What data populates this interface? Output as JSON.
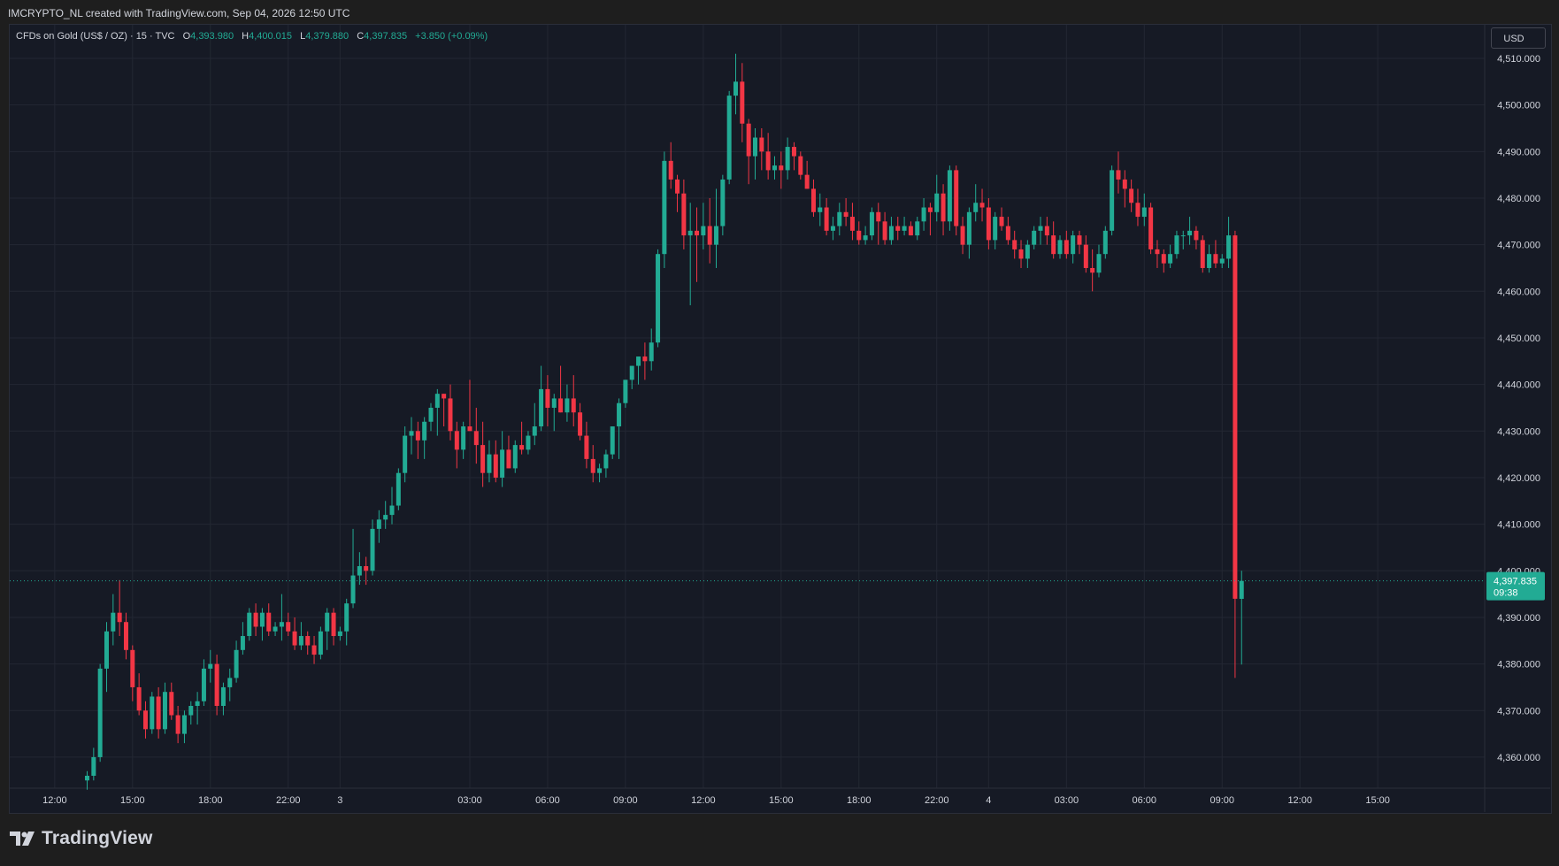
{
  "header": {
    "attribution": "IMCRYPTO_NL created with TradingView.com, Sep 04, 2026 12:50 UTC"
  },
  "legend": {
    "symbol": "CFDs on Gold (US$ / OZ) · 15 · TVC",
    "o_label": "O",
    "o_value": "4,393.980",
    "h_label": "H",
    "h_value": "4,400.015",
    "l_label": "L",
    "l_value": "4,379.880",
    "c_label": "C",
    "c_value": "4,397.835",
    "change": "+3.850 (+0.09%)"
  },
  "currency_button": "USD",
  "price_tag": {
    "price": "4,397.835",
    "countdown": "09:38"
  },
  "brand": {
    "name": "TradingView"
  },
  "colors": {
    "up": "#22ab94",
    "down": "#f23645",
    "background": "#161a25",
    "grid": "#232733",
    "text": "#d1d4dc"
  },
  "chart_data": {
    "type": "candlestick",
    "interval": "15",
    "y_axis": {
      "ylim": [
        4353,
        4516
      ],
      "ticks": [
        {
          "value": 4360,
          "label": "4,360.000"
        },
        {
          "value": 4370,
          "label": "4,370.000"
        },
        {
          "value": 4380,
          "label": "4,380.000"
        },
        {
          "value": 4390,
          "label": "4,390.000"
        },
        {
          "value": 4400,
          "label": "4,400.000"
        },
        {
          "value": 4410,
          "label": "4,410.000"
        },
        {
          "value": 4420,
          "label": "4,420.000"
        },
        {
          "value": 4430,
          "label": "4,430.000"
        },
        {
          "value": 4440,
          "label": "4,440.000"
        },
        {
          "value": 4450,
          "label": "4,450.000"
        },
        {
          "value": 4460,
          "label": "4,460.000"
        },
        {
          "value": 4470,
          "label": "4,470.000"
        },
        {
          "value": 4480,
          "label": "4,480.000"
        },
        {
          "value": 4490,
          "label": "4,490.000"
        },
        {
          "value": 4500,
          "label": "4,500.000"
        },
        {
          "value": 4510,
          "label": "4,510.000"
        }
      ]
    },
    "x_axis": {
      "ticks": [
        {
          "label": "12:00",
          "bar": -5
        },
        {
          "label": "15:00",
          "bar": 7
        },
        {
          "label": "18:00",
          "bar": 19
        },
        {
          "label": "22:00",
          "bar": 31
        },
        {
          "label": "3",
          "bar": 39
        },
        {
          "label": "03:00",
          "bar": 59
        },
        {
          "label": "06:00",
          "bar": 71
        },
        {
          "label": "09:00",
          "bar": 83
        },
        {
          "label": "12:00",
          "bar": 95
        },
        {
          "label": "15:00",
          "bar": 107
        },
        {
          "label": "18:00",
          "bar": 119
        },
        {
          "label": "22:00",
          "bar": 131
        },
        {
          "label": "4",
          "bar": 139
        },
        {
          "label": "03:00",
          "bar": 151
        },
        {
          "label": "06:00",
          "bar": 163
        },
        {
          "label": "09:00",
          "bar": 175
        },
        {
          "label": "12:00",
          "bar": 187
        },
        {
          "label": "15:00",
          "bar": 199
        }
      ]
    },
    "last_price": 4397.835,
    "candles": [
      [
        4355.0,
        4357.0,
        4353.0,
        4356.0
      ],
      [
        4356.0,
        4362.0,
        4355.0,
        4360.0
      ],
      [
        4360.0,
        4380.0,
        4359.0,
        4379.0
      ],
      [
        4379.0,
        4389.0,
        4374.0,
        4387.0
      ],
      [
        4387.0,
        4395.0,
        4384.0,
        4391.0
      ],
      [
        4391.0,
        4398.0,
        4386.0,
        4389.0
      ],
      [
        4389.0,
        4391.0,
        4381.0,
        4383.0
      ],
      [
        4383.0,
        4384.0,
        4372.0,
        4375.0
      ],
      [
        4375.0,
        4378.0,
        4369.0,
        4370.0
      ],
      [
        4370.0,
        4372.0,
        4364.0,
        4366.0
      ],
      [
        4366.0,
        4374.0,
        4365.0,
        4373.0
      ],
      [
        4373.0,
        4375.0,
        4364.0,
        4366.0
      ],
      [
        4366.0,
        4376.0,
        4365.0,
        4374.0
      ],
      [
        4374.0,
        4376.0,
        4368.0,
        4369.0
      ],
      [
        4369.0,
        4371.0,
        4363.0,
        4365.0
      ],
      [
        4365.0,
        4370.0,
        4363.0,
        4369.0
      ],
      [
        4369.0,
        4372.0,
        4367.0,
        4371.0
      ],
      [
        4371.0,
        4374.0,
        4367.0,
        4372.0
      ],
      [
        4372.0,
        4381.0,
        4371.0,
        4379.0
      ],
      [
        4379.0,
        4383.0,
        4376.0,
        4380.0
      ],
      [
        4380.0,
        4382.0,
        4369.0,
        4371.0
      ],
      [
        4371.0,
        4376.0,
        4369.0,
        4375.0
      ],
      [
        4375.0,
        4379.0,
        4372.0,
        4377.0
      ],
      [
        4377.0,
        4385.0,
        4376.0,
        4383.0
      ],
      [
        4383.0,
        4389.0,
        4382.0,
        4386.0
      ],
      [
        4386.0,
        4392.0,
        4385.0,
        4391.0
      ],
      [
        4391.0,
        4393.0,
        4386.0,
        4388.0
      ],
      [
        4388.0,
        4392.0,
        4385.0,
        4391.0
      ],
      [
        4391.0,
        4393.0,
        4386.0,
        4387.0
      ],
      [
        4387.0,
        4389.0,
        4386.0,
        4388.0
      ],
      [
        4388.0,
        4395.0,
        4385.0,
        4389.0
      ],
      [
        4389.0,
        4391.0,
        4386.0,
        4387.0
      ],
      [
        4387.0,
        4390.0,
        4383.0,
        4384.0
      ],
      [
        4384.0,
        4389.0,
        4383.0,
        4386.0
      ],
      [
        4386.0,
        4387.0,
        4382.0,
        4384.0
      ],
      [
        4384.0,
        4386.0,
        4380.0,
        4382.0
      ],
      [
        4382.0,
        4388.0,
        4381.0,
        4387.0
      ],
      [
        4387.0,
        4392.0,
        4383.0,
        4391.0
      ],
      [
        4391.0,
        4392.0,
        4384.0,
        4386.0
      ],
      [
        4386.0,
        4388.0,
        4385.0,
        4387.0
      ],
      [
        4387.0,
        4394.0,
        4384.0,
        4393.0
      ],
      [
        4393.0,
        4409.0,
        4392.0,
        4399.0
      ],
      [
        4399.0,
        4404.0,
        4397.0,
        4401.0
      ],
      [
        4401.0,
        4403.0,
        4397.0,
        4400.0
      ],
      [
        4400.0,
        4411.0,
        4399.0,
        4409.0
      ],
      [
        4409.0,
        4413.0,
        4406.0,
        4411.0
      ],
      [
        4411.0,
        4415.0,
        4409.0,
        4412.0
      ],
      [
        4412.0,
        4418.0,
        4410.0,
        4414.0
      ],
      [
        4414.0,
        4422.0,
        4413.0,
        4421.0
      ],
      [
        4421.0,
        4431.0,
        4419.0,
        4429.0
      ],
      [
        4429.0,
        4433.0,
        4425.0,
        4430.0
      ],
      [
        4430.0,
        4432.0,
        4424.0,
        4428.0
      ],
      [
        4428.0,
        4433.0,
        4424.0,
        4432.0
      ],
      [
        4432.0,
        4436.0,
        4430.0,
        4435.0
      ],
      [
        4435.0,
        4439.0,
        4429.0,
        4438.0
      ],
      [
        4438.0,
        4438.0,
        4431.0,
        4437.0
      ],
      [
        4437.0,
        4440.0,
        4428.0,
        4430.0
      ],
      [
        4430.0,
        4432.0,
        4422.0,
        4426.0
      ],
      [
        4426.0,
        4432.0,
        4424.0,
        4431.0
      ],
      [
        4431.0,
        4441.0,
        4430.0,
        4430.0
      ],
      [
        4430.0,
        4435.0,
        4423.0,
        4427.0
      ],
      [
        4427.0,
        4432.0,
        4418.0,
        4421.0
      ],
      [
        4421.0,
        4428.0,
        4419.0,
        4425.0
      ],
      [
        4425.0,
        4428.0,
        4419.0,
        4420.0
      ],
      [
        4420.0,
        4430.0,
        4418.0,
        4426.0
      ],
      [
        4426.0,
        4429.0,
        4422.0,
        4422.0
      ],
      [
        4422.0,
        4428.0,
        4421.0,
        4427.0
      ],
      [
        4427.0,
        4432.0,
        4425.0,
        4426.0
      ],
      [
        4426.0,
        4430.0,
        4425.0,
        4429.0
      ],
      [
        4429.0,
        4436.0,
        4427.0,
        4431.0
      ],
      [
        4431.0,
        4444.0,
        4430.0,
        4439.0
      ],
      [
        4439.0,
        4442.0,
        4431.0,
        4435.0
      ],
      [
        4435.0,
        4438.0,
        4430.0,
        4437.0
      ],
      [
        4437.0,
        4444.0,
        4434.0,
        4434.0
      ],
      [
        4434.0,
        4440.0,
        4432.0,
        4437.0
      ],
      [
        4437.0,
        4442.0,
        4431.0,
        4434.0
      ],
      [
        4434.0,
        4436.0,
        4428.0,
        4429.0
      ],
      [
        4429.0,
        4432.0,
        4422.0,
        4424.0
      ],
      [
        4424.0,
        4427.0,
        4419.0,
        4421.0
      ],
      [
        4421.0,
        4423.0,
        4419.0,
        4422.0
      ],
      [
        4422.0,
        4426.0,
        4420.0,
        4425.0
      ],
      [
        4425.0,
        4431.0,
        4424.0,
        4431.0
      ],
      [
        4431.0,
        4437.0,
        4424.0,
        4436.0
      ],
      [
        4436.0,
        4441.0,
        4435.0,
        4441.0
      ],
      [
        4441.0,
        4444.0,
        4439.0,
        4444.0
      ],
      [
        4444.0,
        4446.0,
        4440.0,
        4446.0
      ],
      [
        4446.0,
        4449.0,
        4441.0,
        4445.0
      ],
      [
        4445.0,
        4452.0,
        4443.0,
        4449.0
      ],
      [
        4449.0,
        4469.0,
        4448.0,
        4468.0
      ],
      [
        4468.0,
        4490.0,
        4465.0,
        4488.0
      ],
      [
        4488.0,
        4492.0,
        4482.0,
        4484.0
      ],
      [
        4484.0,
        4485.0,
        4477.0,
        4481.0
      ],
      [
        4481.0,
        4484.0,
        4469.0,
        4472.0
      ],
      [
        4472.0,
        4479.0,
        4457.0,
        4473.0
      ],
      [
        4473.0,
        4478.0,
        4462.0,
        4472.0
      ],
      [
        4472.0,
        4479.0,
        4469.0,
        4474.0
      ],
      [
        4474.0,
        4480.0,
        4466.0,
        4470.0
      ],
      [
        4470.0,
        4482.0,
        4465.0,
        4474.0
      ],
      [
        4474.0,
        4485.0,
        4472.0,
        4484.0
      ],
      [
        4484.0,
        4503.0,
        4483.0,
        4502.0
      ],
      [
        4502.0,
        4511.0,
        4498.0,
        4505.0
      ],
      [
        4505.0,
        4509.0,
        4492.0,
        4496.0
      ],
      [
        4496.0,
        4497.0,
        4483.0,
        4489.0
      ],
      [
        4489.0,
        4495.0,
        4484.0,
        4493.0
      ],
      [
        4493.0,
        4495.0,
        4486.0,
        4490.0
      ],
      [
        4490.0,
        4494.0,
        4484.0,
        4486.0
      ],
      [
        4486.0,
        4489.0,
        4484.0,
        4487.0
      ],
      [
        4487.0,
        4490.0,
        4482.0,
        4486.0
      ],
      [
        4486.0,
        4493.0,
        4484.0,
        4491.0
      ],
      [
        4491.0,
        4492.0,
        4486.0,
        4489.0
      ],
      [
        4489.0,
        4490.0,
        4484.0,
        4485.0
      ],
      [
        4485.0,
        4488.0,
        4482.0,
        4482.0
      ],
      [
        4482.0,
        4484.0,
        4476.0,
        4477.0
      ],
      [
        4477.0,
        4481.0,
        4474.0,
        4478.0
      ],
      [
        4478.0,
        4480.0,
        4472.0,
        4473.0
      ],
      [
        4473.0,
        4476.0,
        4471.0,
        4474.0
      ],
      [
        4474.0,
        4479.0,
        4472.0,
        4477.0
      ],
      [
        4477.0,
        4480.0,
        4474.0,
        4476.0
      ],
      [
        4476.0,
        4479.0,
        4471.0,
        4473.0
      ],
      [
        4473.0,
        4475.0,
        4470.0,
        4471.0
      ],
      [
        4471.0,
        4474.0,
        4470.0,
        4472.0
      ],
      [
        4472.0,
        4478.0,
        4471.0,
        4477.0
      ],
      [
        4477.0,
        4479.0,
        4470.0,
        4475.0
      ],
      [
        4475.0,
        4477.0,
        4470.0,
        4471.0
      ],
      [
        4471.0,
        4476.0,
        4470.0,
        4474.0
      ],
      [
        4474.0,
        4476.0,
        4471.0,
        4473.0
      ],
      [
        4473.0,
        4476.0,
        4472.0,
        4474.0
      ],
      [
        4474.0,
        4475.0,
        4472.0,
        4472.0
      ],
      [
        4472.0,
        4476.0,
        4471.0,
        4475.0
      ],
      [
        4475.0,
        4480.0,
        4473.0,
        4478.0
      ],
      [
        4478.0,
        4479.0,
        4472.0,
        4477.0
      ],
      [
        4477.0,
        4485.0,
        4475.0,
        4481.0
      ],
      [
        4481.0,
        4483.0,
        4472.0,
        4475.0
      ],
      [
        4475.0,
        4487.0,
        4473.0,
        4486.0
      ],
      [
        4486.0,
        4487.0,
        4472.0,
        4474.0
      ],
      [
        4474.0,
        4476.0,
        4468.0,
        4470.0
      ],
      [
        4470.0,
        4478.0,
        4467.0,
        4477.0
      ],
      [
        4477.0,
        4483.0,
        4475.0,
        4479.0
      ],
      [
        4479.0,
        4482.0,
        4475.0,
        4478.0
      ],
      [
        4478.0,
        4480.0,
        4469.0,
        4471.0
      ],
      [
        4471.0,
        4477.0,
        4469.0,
        4476.0
      ],
      [
        4476.0,
        4478.0,
        4473.0,
        4474.0
      ],
      [
        4474.0,
        4476.0,
        4470.0,
        4471.0
      ],
      [
        4471.0,
        4473.0,
        4467.0,
        4469.0
      ],
      [
        4469.0,
        4471.0,
        4465.0,
        4467.0
      ],
      [
        4467.0,
        4471.0,
        4465.0,
        4470.0
      ],
      [
        4470.0,
        4474.0,
        4469.0,
        4473.0
      ],
      [
        4473.0,
        4476.0,
        4470.0,
        4474.0
      ],
      [
        4474.0,
        4476.0,
        4470.0,
        4472.0
      ],
      [
        4472.0,
        4475.0,
        4467.0,
        4468.0
      ],
      [
        4468.0,
        4472.0,
        4467.0,
        4471.0
      ],
      [
        4471.0,
        4473.0,
        4467.0,
        4468.0
      ],
      [
        4468.0,
        4473.0,
        4466.0,
        4472.0
      ],
      [
        4472.0,
        4473.0,
        4468.0,
        4470.0
      ],
      [
        4470.0,
        4472.0,
        4464.0,
        4465.0
      ],
      [
        4465.0,
        4469.0,
        4460.0,
        4464.0
      ],
      [
        4464.0,
        4470.0,
        4463.0,
        4468.0
      ],
      [
        4468.0,
        4474.0,
        4467.0,
        4473.0
      ],
      [
        4473.0,
        4487.0,
        4472.0,
        4486.0
      ],
      [
        4486.0,
        4490.0,
        4481.0,
        4484.0
      ],
      [
        4484.0,
        4486.0,
        4478.0,
        4482.0
      ],
      [
        4482.0,
        4484.0,
        4477.0,
        4479.0
      ],
      [
        4479.0,
        4482.0,
        4474.0,
        4476.0
      ],
      [
        4476.0,
        4481.0,
        4474.0,
        4478.0
      ],
      [
        4478.0,
        4479.0,
        4468.0,
        4469.0
      ],
      [
        4469.0,
        4471.0,
        4465.0,
        4468.0
      ],
      [
        4468.0,
        4469.0,
        4464.0,
        4466.0
      ],
      [
        4466.0,
        4470.0,
        4465.0,
        4468.0
      ],
      [
        4468.0,
        4473.0,
        4467.0,
        4472.0
      ],
      [
        4472.0,
        4473.0,
        4469.0,
        4472.0
      ],
      [
        4472.0,
        4476.0,
        4470.0,
        4473.0
      ],
      [
        4473.0,
        4474.0,
        4469.0,
        4471.0
      ],
      [
        4471.0,
        4472.0,
        4464.0,
        4465.0
      ],
      [
        4465.0,
        4470.0,
        4464.0,
        4468.0
      ],
      [
        4468.0,
        4471.0,
        4465.0,
        4466.0
      ],
      [
        4466.0,
        4468.0,
        4465.0,
        4467.0
      ],
      [
        4467.0,
        4476.0,
        4465.0,
        4472.0
      ],
      [
        4472.0,
        4473.0,
        4377.0,
        4394.0
      ],
      [
        4393.98,
        4400.015,
        4379.88,
        4397.835
      ]
    ]
  }
}
